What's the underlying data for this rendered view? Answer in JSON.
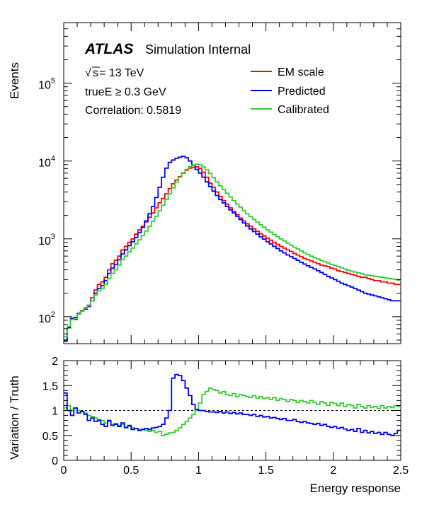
{
  "chart_data": [
    {
      "type": "line",
      "step": true,
      "ylabel": "Events",
      "yscale": "log",
      "ylim": [
        45,
        600000
      ],
      "xlim": [
        0,
        2.5
      ],
      "x_ticks": [
        0,
        0.5,
        1,
        1.5,
        2,
        2.5
      ],
      "y_ticks": [
        {
          "value": 100,
          "base": "10",
          "exp": "2"
        },
        {
          "value": 1000,
          "base": "10",
          "exp": "3"
        },
        {
          "value": 10000,
          "base": "10",
          "exp": "4"
        },
        {
          "value": 100000,
          "base": "10",
          "exp": "5"
        }
      ],
      "annotations": {
        "atlas": "ATLAS",
        "atlas_sub": "Simulation Internal",
        "sqrt_symbol": "√",
        "sqrt_arg": "s",
        "energy": " = 13 TeV",
        "cut": "trueE ≥ 0.3 GeV",
        "correlation": "Correlation: 0.5819"
      },
      "legend_position": "top-right",
      "x": [
        0.0125,
        0.0375,
        0.0625,
        0.0875,
        0.1125,
        0.1375,
        0.1625,
        0.1875,
        0.2125,
        0.2375,
        0.2625,
        0.2875,
        0.3125,
        0.3375,
        0.3625,
        0.3875,
        0.4125,
        0.4375,
        0.4625,
        0.4875,
        0.5125,
        0.5375,
        0.5625,
        0.5875,
        0.6125,
        0.6375,
        0.6625,
        0.6875,
        0.7125,
        0.7375,
        0.7625,
        0.7875,
        0.8125,
        0.8375,
        0.8625,
        0.8875,
        0.9125,
        0.9375,
        0.9625,
        0.9875,
        1.0125,
        1.0375,
        1.0625,
        1.0875,
        1.1125,
        1.1375,
        1.1625,
        1.1875,
        1.2125,
        1.2375,
        1.2625,
        1.2875,
        1.3125,
        1.3375,
        1.3625,
        1.3875,
        1.4125,
        1.4375,
        1.4625,
        1.4875,
        1.5125,
        1.5375,
        1.5625,
        1.5875,
        1.6125,
        1.6375,
        1.6625,
        1.6875,
        1.7125,
        1.7375,
        1.7625,
        1.7875,
        1.8125,
        1.8375,
        1.8625,
        1.8875,
        1.9125,
        1.9375,
        1.9625,
        1.9875,
        2.0125,
        2.0375,
        2.0625,
        2.0875,
        2.1125,
        2.1375,
        2.1625,
        2.1875,
        2.2125,
        2.2375,
        2.2625,
        2.2875,
        2.3125,
        2.3375,
        2.3625,
        2.3875,
        2.4125,
        2.4375,
        2.4625,
        2.4875
      ],
      "series": [
        {
          "name": "EM scale",
          "color": "#ff0000",
          "values": [
            48,
            72,
            95,
            92,
            110,
            120,
            130,
            140,
            175,
            220,
            260,
            280,
            320,
            400,
            480,
            530,
            600,
            720,
            800,
            900,
            1000,
            1150,
            1300,
            1450,
            1650,
            1900,
            2150,
            2500,
            2900,
            3300,
            3800,
            4400,
            5100,
            5700,
            6300,
            7000,
            7600,
            8100,
            8300,
            8400,
            8000,
            7200,
            6200,
            5200,
            4600,
            4000,
            3500,
            3100,
            2800,
            2500,
            2250,
            2050,
            1850,
            1700,
            1560,
            1450,
            1340,
            1250,
            1160,
            1090,
            1020,
            960,
            900,
            850,
            800,
            760,
            720,
            690,
            650,
            620,
            590,
            560,
            540,
            520,
            500,
            480,
            460,
            450,
            440,
            420,
            410,
            390,
            380,
            370,
            360,
            350,
            340,
            330,
            320,
            320,
            310,
            300,
            290,
            290,
            280,
            280,
            270,
            270,
            260,
            260
          ]
        },
        {
          "name": "Predicted",
          "color": "#0000ff",
          "values": [
            50,
            72,
            95,
            98,
            110,
            118,
            125,
            135,
            160,
            200,
            230,
            250,
            290,
            360,
            420,
            470,
            540,
            640,
            720,
            820,
            920,
            1040,
            1200,
            1400,
            1700,
            2100,
            2600,
            3400,
            4600,
            6200,
            8100,
            9600,
            10300,
            10800,
            11200,
            11500,
            11000,
            10000,
            8800,
            7800,
            7000,
            6200,
            5400,
            4700,
            4100,
            3600,
            3200,
            2900,
            2600,
            2350,
            2150,
            1950,
            1770,
            1600,
            1460,
            1340,
            1240,
            1150,
            1060,
            990,
            920,
            860,
            800,
            750,
            700,
            660,
            620,
            590,
            560,
            530,
            500,
            475,
            450,
            430,
            410,
            390,
            370,
            350,
            330,
            315,
            300,
            285,
            270,
            260,
            250,
            240,
            230,
            220,
            210,
            200,
            195,
            190,
            185,
            180,
            175,
            170,
            165,
            160,
            160,
            160
          ]
        },
        {
          "name": "Calibrated",
          "color": "#33cc33",
          "values": [
            55,
            75,
            92,
            95,
            108,
            118,
            128,
            138,
            160,
            190,
            215,
            230,
            260,
            310,
            360,
            400,
            460,
            540,
            600,
            680,
            760,
            860,
            970,
            1100,
            1260,
            1450,
            1680,
            1950,
            2300,
            2700,
            3200,
            3800,
            4500,
            5300,
            6200,
            7100,
            7800,
            8500,
            8900,
            9100,
            8900,
            8400,
            7700,
            6900,
            6100,
            5400,
            4800,
            4300,
            3850,
            3450,
            3100,
            2800,
            2550,
            2300,
            2100,
            1930,
            1780,
            1640,
            1520,
            1410,
            1310,
            1220,
            1140,
            1070,
            1000,
            940,
            880,
            830,
            780,
            740,
            700,
            660,
            630,
            600,
            570,
            550,
            530,
            510,
            490,
            470,
            455,
            440,
            425,
            410,
            395,
            385,
            375,
            365,
            355,
            345,
            340,
            335,
            330,
            325,
            320,
            315,
            310,
            305,
            300,
            295
          ]
        }
      ]
    },
    {
      "type": "line",
      "step": true,
      "xlabel": "Energy response",
      "ylabel": "Variation / Truth",
      "xlim": [
        0,
        2.5
      ],
      "ylim": [
        0,
        2
      ],
      "x_ticks": [
        0,
        0.5,
        1,
        1.5,
        2,
        2.5
      ],
      "y_ticks": [
        0,
        0.5,
        1,
        1.5,
        2
      ],
      "reference_line": 1,
      "x": [
        0.0125,
        0.0375,
        0.0625,
        0.0875,
        0.1125,
        0.1375,
        0.1625,
        0.1875,
        0.2125,
        0.2375,
        0.2625,
        0.2875,
        0.3125,
        0.3375,
        0.3625,
        0.3875,
        0.4125,
        0.4375,
        0.4625,
        0.4875,
        0.5125,
        0.5375,
        0.5625,
        0.5875,
        0.6125,
        0.6375,
        0.6625,
        0.6875,
        0.7125,
        0.7375,
        0.7625,
        0.7875,
        0.8125,
        0.8375,
        0.8625,
        0.8875,
        0.9125,
        0.9375,
        0.9625,
        0.9875,
        1.0125,
        1.0375,
        1.0625,
        1.0875,
        1.1125,
        1.1375,
        1.1625,
        1.1875,
        1.2125,
        1.2375,
        1.2625,
        1.2875,
        1.3125,
        1.3375,
        1.3625,
        1.3875,
        1.4125,
        1.4375,
        1.4625,
        1.4875,
        1.5125,
        1.5375,
        1.5625,
        1.5875,
        1.6125,
        1.6375,
        1.6625,
        1.6875,
        1.7125,
        1.7375,
        1.7625,
        1.7875,
        1.8125,
        1.8375,
        1.8625,
        1.8875,
        1.9125,
        1.9375,
        1.9625,
        1.9875,
        2.0125,
        2.0375,
        2.0625,
        2.0875,
        2.1125,
        2.1375,
        2.1625,
        2.1875,
        2.2125,
        2.2375,
        2.2625,
        2.2875,
        2.3125,
        2.3375,
        2.3625,
        2.3875,
        2.4125,
        2.4375,
        2.4625,
        2.4875
      ],
      "series": [
        {
          "name": "Predicted",
          "color": "#0000ff",
          "values": [
            1.35,
            1.0,
            0.9,
            1.05,
            0.95,
            0.98,
            0.92,
            0.8,
            0.85,
            0.78,
            0.8,
            0.72,
            0.68,
            0.8,
            0.7,
            0.72,
            0.68,
            0.75,
            0.66,
            0.7,
            0.62,
            0.64,
            0.6,
            0.62,
            0.64,
            0.62,
            0.65,
            0.66,
            0.68,
            0.72,
            0.85,
            1.0,
            1.65,
            1.72,
            1.7,
            1.6,
            1.45,
            1.3,
            1.12,
            1.02,
            1.0,
            1.0,
            0.98,
            0.97,
            0.97,
            0.96,
            0.98,
            0.95,
            0.97,
            0.94,
            0.96,
            0.93,
            0.95,
            0.92,
            0.92,
            0.9,
            0.92,
            0.88,
            0.9,
            0.87,
            0.88,
            0.85,
            0.86,
            0.84,
            0.82,
            0.84,
            0.8,
            0.8,
            0.82,
            0.78,
            0.76,
            0.78,
            0.75,
            0.74,
            0.72,
            0.74,
            0.7,
            0.72,
            0.68,
            0.66,
            0.68,
            0.64,
            0.66,
            0.63,
            0.6,
            0.62,
            0.58,
            0.64,
            0.56,
            0.6,
            0.55,
            0.58,
            0.54,
            0.56,
            0.52,
            0.56,
            0.52,
            0.5,
            0.54,
            0.6
          ]
        },
        {
          "name": "Calibrated",
          "color": "#33cc33",
          "values": [
            1.05,
            1.1,
            1.0,
            1.05,
            1.0,
            0.98,
            0.95,
            0.9,
            0.88,
            0.85,
            0.82,
            0.8,
            0.75,
            0.78,
            0.72,
            0.74,
            0.7,
            0.72,
            0.65,
            0.68,
            0.65,
            0.64,
            0.62,
            0.62,
            0.6,
            0.58,
            0.6,
            0.56,
            0.58,
            0.5,
            0.52,
            0.55,
            0.56,
            0.6,
            0.65,
            0.72,
            0.78,
            0.85,
            0.92,
            1.0,
            1.15,
            1.32,
            1.38,
            1.45,
            1.42,
            1.4,
            1.35,
            1.38,
            1.32,
            1.3,
            1.34,
            1.28,
            1.32,
            1.3,
            1.28,
            1.26,
            1.3,
            1.25,
            1.28,
            1.24,
            1.26,
            1.22,
            1.26,
            1.2,
            1.24,
            1.22,
            1.18,
            1.22,
            1.2,
            1.16,
            1.2,
            1.18,
            1.15,
            1.2,
            1.16,
            1.12,
            1.18,
            1.15,
            1.1,
            1.16,
            1.14,
            1.1,
            1.15,
            1.08,
            1.12,
            1.1,
            1.05,
            1.12,
            1.08,
            1.05,
            1.1,
            1.06,
            1.08,
            1.04,
            1.1,
            1.05,
            1.08,
            1.06,
            1.1,
            1.08
          ]
        }
      ]
    }
  ]
}
